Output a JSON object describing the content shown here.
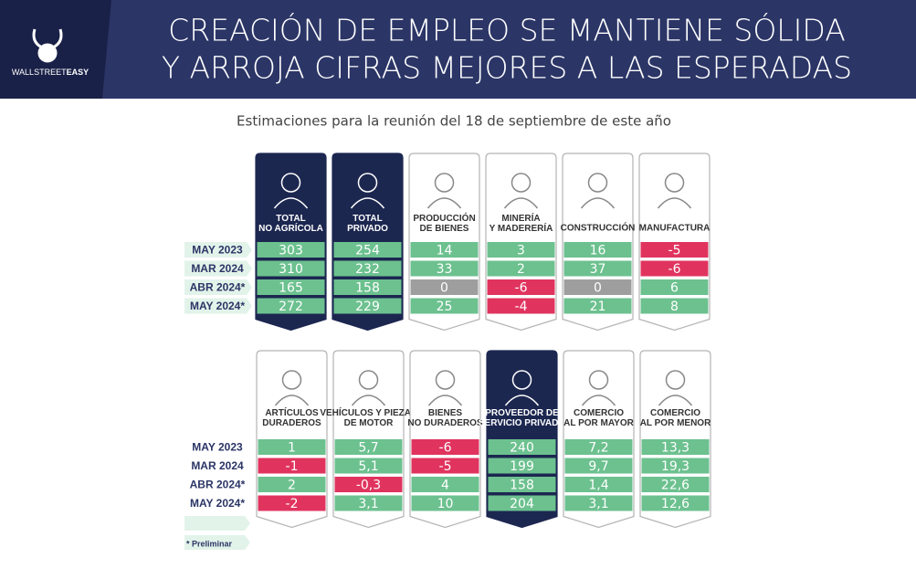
{
  "header": {
    "title": [
      "CREACIÓN DE EMPLEO SE MANTIENE SÓLIDA",
      "Y ARROJA CIFRAS MEJORES A LAS ESPERADAS"
    ],
    "logo": [
      "WALLSTREET",
      "EASY"
    ]
  },
  "subtitle": "Estimaciones para la reunión del 18 de septiembre de este año",
  "tables": [
    {
      "row_labels": [
        "MAY 2023",
        "MAR 2024",
        "ABR 2024*",
        "MAY 2024*"
      ],
      "columns": [
        {
          "label": [
            "TOTAL",
            "NO AGRÍCOLA"
          ],
          "dark": true,
          "values": [
            "303",
            "310",
            "165",
            "272"
          ]
        },
        {
          "label": [
            "TOTAL",
            "PRIVADO"
          ],
          "dark": true,
          "values": [
            "254",
            "232",
            "158",
            "229"
          ]
        },
        {
          "label": [
            "PRODUCCIÓN",
            "DE BIENES"
          ],
          "dark": false,
          "values": [
            "14",
            "33",
            "0",
            "25"
          ]
        },
        {
          "label": [
            "MINERÍA",
            "Y MADERERÍA"
          ],
          "dark": false,
          "values": [
            "3",
            "2",
            "-6",
            "-4"
          ]
        },
        {
          "label": [
            "CONSTRUCCIÓN"
          ],
          "dark": false,
          "values": [
            "16",
            "37",
            "0",
            "21"
          ]
        },
        {
          "label": [
            "MANUFACTURA"
          ],
          "dark": false,
          "values": [
            "-5",
            "-6",
            "6",
            "8"
          ]
        }
      ]
    },
    {
      "row_labels": [
        "MAY 2023",
        "MAR 2024",
        "ABR 2024*",
        "MAY 2024*"
      ],
      "columns": [
        {
          "label": [
            "ARTÍCULOS",
            "DURADEROS"
          ],
          "dark": false,
          "values": [
            "1",
            "-1",
            "2",
            "-2"
          ]
        },
        {
          "label": [
            "VEHÍCULOS Y PIEZAS",
            "DE MOTOR"
          ],
          "dark": false,
          "values": [
            "5,7",
            "5,1",
            "-0,3",
            "3,1"
          ]
        },
        {
          "label": [
            "BIENES",
            "NO DURADEROS"
          ],
          "dark": false,
          "values": [
            "-6",
            "-5",
            "4",
            "10"
          ]
        },
        {
          "label": [
            "PROVEEDOR DE",
            "SERVICIO PRIVADO"
          ],
          "dark": true,
          "values": [
            "240",
            "199",
            "158",
            "204"
          ]
        },
        {
          "label": [
            "COMERCIO",
            "AL POR MAYOR"
          ],
          "dark": false,
          "values": [
            "7,2",
            "9,7",
            "1,4",
            "3,1"
          ]
        },
        {
          "label": [
            "COMERCIO",
            "AL POR MENOR"
          ],
          "dark": false,
          "values": [
            "13,3",
            "19,3",
            "22,6",
            "12,6"
          ]
        }
      ]
    }
  ],
  "note": "* Preliminar"
}
